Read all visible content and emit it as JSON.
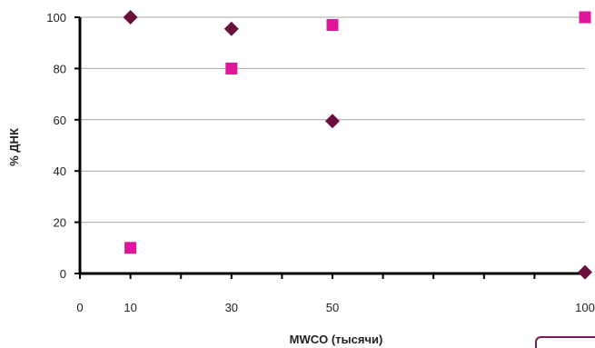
{
  "chart_data": {
    "type": "scatter",
    "title": "",
    "xlabel": "MWCO (тысячи)",
    "ylabel": "% ДНК",
    "xlim": [
      0,
      100
    ],
    "ylim": [
      0,
      100
    ],
    "x_ticks": [
      0,
      10,
      30,
      50,
      100
    ],
    "x_tick_labels": [
      "0",
      "10",
      "30",
      "50",
      "100"
    ],
    "y_ticks": [
      0,
      20,
      40,
      60,
      80,
      100
    ],
    "y_tick_labels": [
      "0",
      "20",
      "40",
      "60",
      "80",
      "100"
    ],
    "grid": "horizontal",
    "legend": "none",
    "series": [
      {
        "marker": "diamond",
        "color": "#6b0f3e",
        "x": [
          10,
          30,
          50,
          100
        ],
        "y": [
          100,
          95.5,
          59.5,
          0.5
        ]
      },
      {
        "marker": "square",
        "color": "#e0169a",
        "x": [
          10,
          30,
          50,
          100
        ],
        "y": [
          10,
          80,
          97,
          100
        ]
      }
    ]
  },
  "colors": {
    "axis": "#000000",
    "gridline": "#a6a6a6",
    "corner_outline": "#7b1c55"
  }
}
